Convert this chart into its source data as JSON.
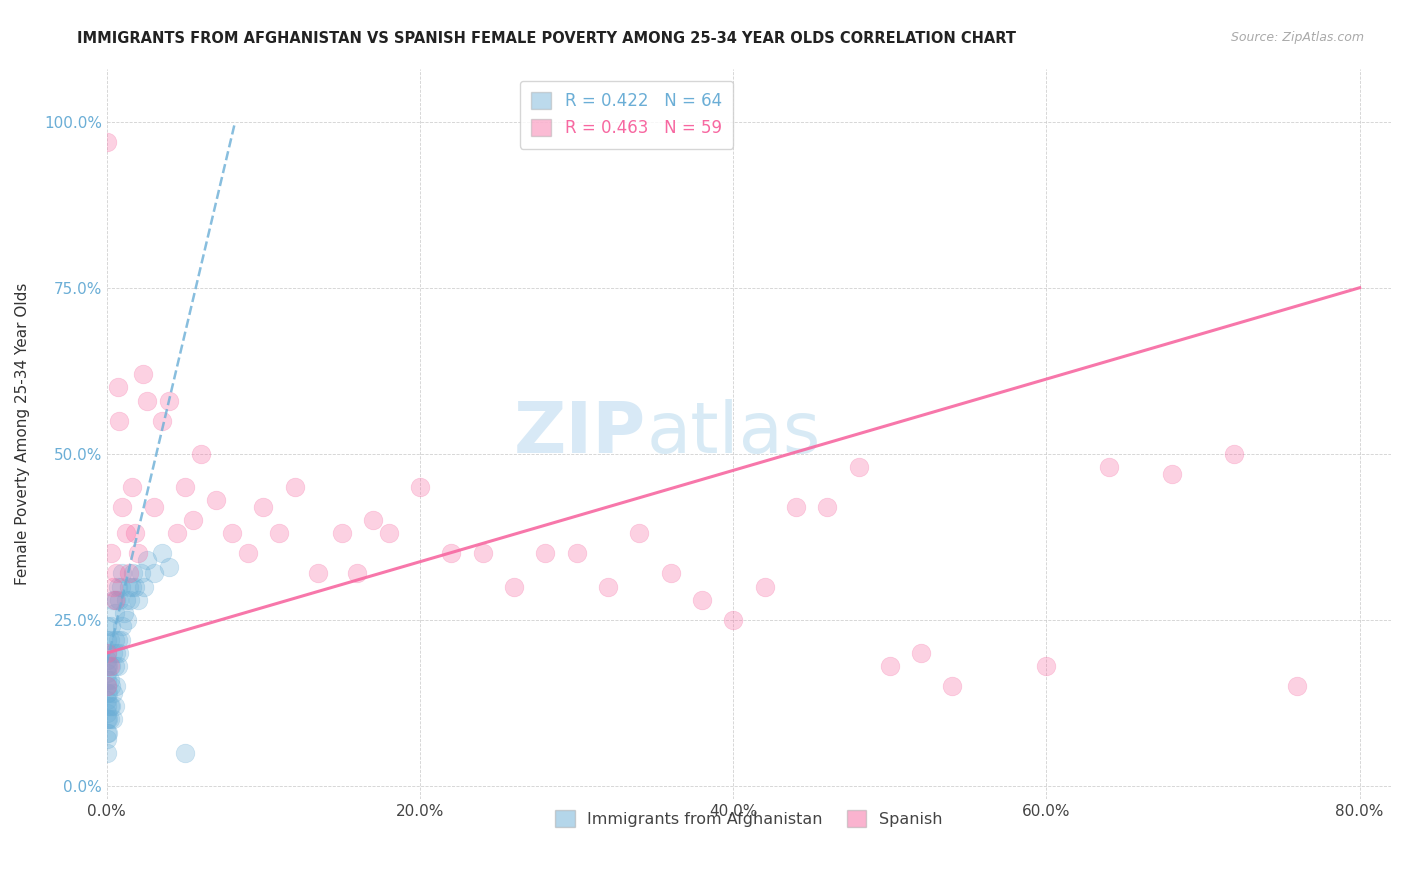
{
  "title": "IMMIGRANTS FROM AFGHANISTAN VS SPANISH FEMALE POVERTY AMONG 25-34 YEAR OLDS CORRELATION CHART",
  "source": "Source: ZipAtlas.com",
  "ylabel": "Female Poverty Among 25-34 Year Olds",
  "xlabel_ticks": [
    "0.0%",
    "20.0%",
    "40.0%",
    "60.0%",
    "80.0%"
  ],
  "xlabel_vals": [
    0.0,
    0.2,
    0.4,
    0.6,
    0.8
  ],
  "ylabel_ticks": [
    "0.0%",
    "25.0%",
    "50.0%",
    "75.0%",
    "100.0%"
  ],
  "ylabel_vals": [
    0.0,
    0.25,
    0.5,
    0.75,
    1.0
  ],
  "xlim": [
    0.0,
    0.82
  ],
  "ylim": [
    -0.02,
    1.08
  ],
  "legend_bottom": [
    "Immigrants from Afghanistan",
    "Spanish"
  ],
  "blue_color": "#6baed6",
  "pink_color": "#f768a1",
  "watermark_zip": "ZIP",
  "watermark_atlas": "atlas",
  "R_afghan": 0.422,
  "R_spanish": 0.463,
  "N_afghan": 64,
  "N_spanish": 59,
  "afghan_x": [
    0.0,
    0.0,
    0.0,
    0.0,
    0.0,
    0.0,
    0.0,
    0.0,
    0.0,
    0.0,
    0.0,
    0.0,
    0.0,
    0.0,
    0.0,
    0.0,
    0.001,
    0.001,
    0.001,
    0.001,
    0.002,
    0.002,
    0.002,
    0.002,
    0.003,
    0.003,
    0.003,
    0.003,
    0.004,
    0.004,
    0.004,
    0.004,
    0.005,
    0.005,
    0.005,
    0.005,
    0.006,
    0.006,
    0.006,
    0.007,
    0.007,
    0.007,
    0.008,
    0.008,
    0.009,
    0.009,
    0.01,
    0.01,
    0.011,
    0.012,
    0.013,
    0.014,
    0.015,
    0.016,
    0.017,
    0.018,
    0.02,
    0.022,
    0.024,
    0.026,
    0.03,
    0.035,
    0.04,
    0.05
  ],
  "afghan_y": [
    0.05,
    0.07,
    0.08,
    0.1,
    0.11,
    0.12,
    0.13,
    0.14,
    0.15,
    0.16,
    0.17,
    0.18,
    0.19,
    0.2,
    0.22,
    0.24,
    0.08,
    0.1,
    0.14,
    0.18,
    0.1,
    0.12,
    0.16,
    0.22,
    0.12,
    0.15,
    0.18,
    0.24,
    0.1,
    0.14,
    0.2,
    0.28,
    0.12,
    0.18,
    0.22,
    0.26,
    0.15,
    0.2,
    0.28,
    0.18,
    0.22,
    0.3,
    0.2,
    0.28,
    0.22,
    0.3,
    0.24,
    0.32,
    0.26,
    0.28,
    0.25,
    0.3,
    0.28,
    0.3,
    0.32,
    0.3,
    0.28,
    0.32,
    0.3,
    0.34,
    0.32,
    0.35,
    0.33,
    0.05
  ],
  "spanish_x": [
    0.0,
    0.0,
    0.0,
    0.002,
    0.003,
    0.004,
    0.005,
    0.006,
    0.007,
    0.008,
    0.01,
    0.012,
    0.014,
    0.016,
    0.018,
    0.02,
    0.023,
    0.026,
    0.03,
    0.035,
    0.04,
    0.045,
    0.05,
    0.055,
    0.06,
    0.07,
    0.08,
    0.09,
    0.1,
    0.11,
    0.12,
    0.135,
    0.15,
    0.16,
    0.17,
    0.18,
    0.2,
    0.22,
    0.24,
    0.26,
    0.28,
    0.3,
    0.32,
    0.34,
    0.36,
    0.38,
    0.4,
    0.42,
    0.44,
    0.46,
    0.48,
    0.5,
    0.52,
    0.54,
    0.6,
    0.64,
    0.68,
    0.72,
    0.76
  ],
  "spanish_y": [
    0.97,
    0.2,
    0.15,
    0.18,
    0.35,
    0.3,
    0.28,
    0.32,
    0.6,
    0.55,
    0.42,
    0.38,
    0.32,
    0.45,
    0.38,
    0.35,
    0.62,
    0.58,
    0.42,
    0.55,
    0.58,
    0.38,
    0.45,
    0.4,
    0.5,
    0.43,
    0.38,
    0.35,
    0.42,
    0.38,
    0.45,
    0.32,
    0.38,
    0.32,
    0.4,
    0.38,
    0.45,
    0.35,
    0.35,
    0.3,
    0.35,
    0.35,
    0.3,
    0.38,
    0.32,
    0.28,
    0.25,
    0.3,
    0.42,
    0.42,
    0.48,
    0.18,
    0.2,
    0.15,
    0.18,
    0.48,
    0.47,
    0.5,
    0.15
  ],
  "blue_line_x": [
    0.0,
    0.082
  ],
  "blue_line_y": [
    0.185,
    1.0
  ],
  "pink_line_x": [
    0.0,
    0.8
  ],
  "pink_line_y": [
    0.2,
    0.75
  ]
}
